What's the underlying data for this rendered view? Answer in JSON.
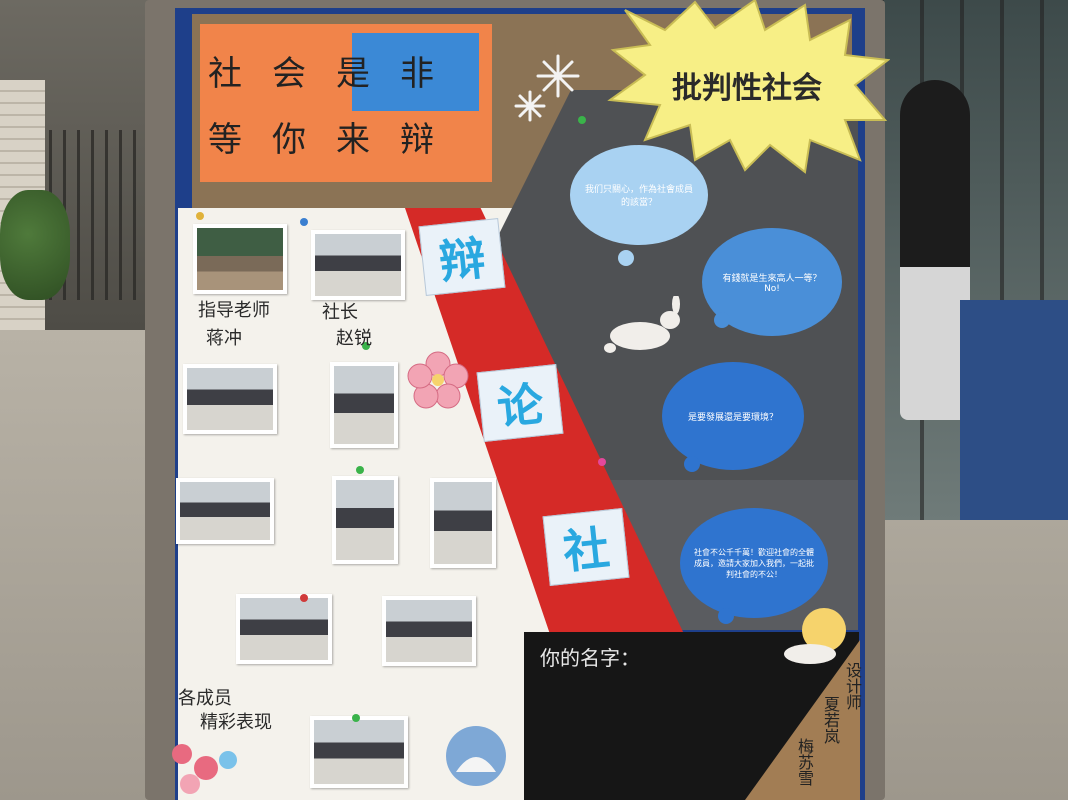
{
  "title": {
    "line1": "社会是非",
    "line2": "等你来辩"
  },
  "burst_text": "批判性社会",
  "banner": [
    "辩",
    "论",
    "社"
  ],
  "bubbles": [
    {
      "text": "我们只關心，作為社會成員的該當？"
    },
    {
      "text": "有錢就是生來高人一等？ No!"
    },
    {
      "text": "是要發展還是要環境？"
    },
    {
      "text": "社會不公千千萬！歡迎社會的全體成員，邀請大家加入我們，一起批判社會的不公！"
    }
  ],
  "captions": {
    "advisor_label": "指导老师",
    "advisor_name": "蒋冲",
    "president_label": "社长",
    "president_name": "赵锐",
    "members_line1": "各成员",
    "members_line2": "精彩表现"
  },
  "name_prompt": "你的名字：",
  "designer": {
    "label": "设计师",
    "name1": "夏若岚",
    "name2": "梅苏雪"
  },
  "colors": {
    "board_blue": "#1e3f8a",
    "title_orange": "#f1844a",
    "banner_red": "#d52a27",
    "burst_yellow": "#f7ef86",
    "bubble_blue_light": "#a9d2f2",
    "bubble_blue": "#4a8fd8",
    "bubble_blue_dark": "#2f74cf"
  }
}
